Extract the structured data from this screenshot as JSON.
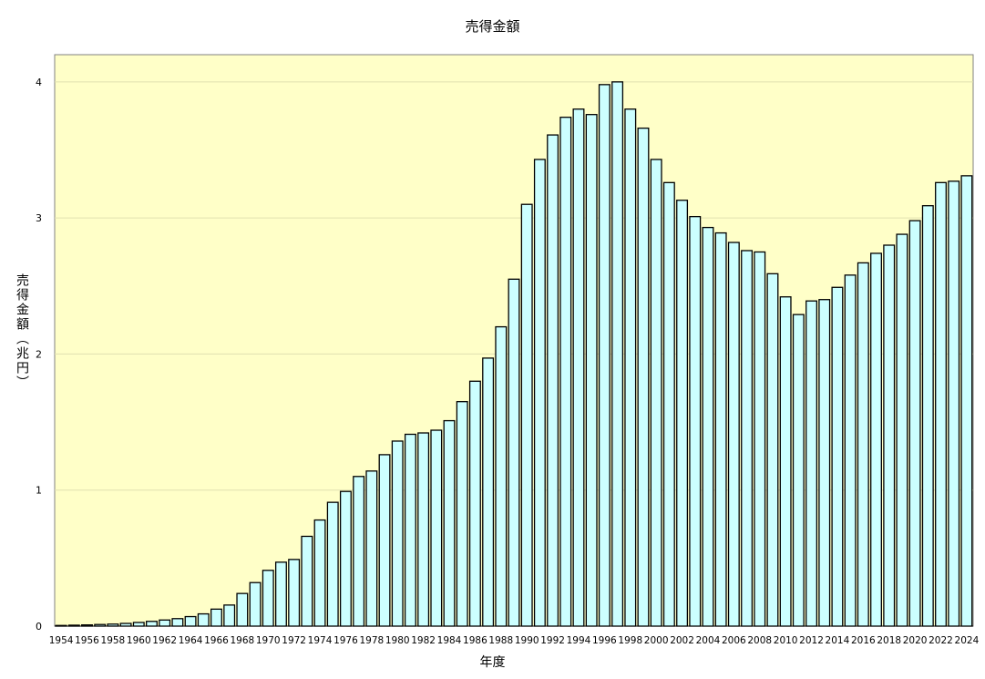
{
  "chart_data": {
    "type": "bar",
    "title": "売得金額",
    "xlabel": "年度",
    "ylabel": "売得金額（兆円）",
    "ylim": [
      0,
      4.2
    ],
    "yticks": [
      0,
      1,
      2,
      3,
      4
    ],
    "grid": true,
    "colors": {
      "plot_bg": "#ffffc8",
      "bar_fill": "#ccffff",
      "bar_stroke": "#000000",
      "grid": "#e0e0b0"
    },
    "categories": [
      1954,
      1955,
      1956,
      1957,
      1958,
      1959,
      1960,
      1961,
      1962,
      1963,
      1964,
      1965,
      1966,
      1967,
      1968,
      1969,
      1970,
      1971,
      1972,
      1973,
      1974,
      1975,
      1976,
      1977,
      1978,
      1979,
      1980,
      1981,
      1982,
      1983,
      1984,
      1985,
      1986,
      1987,
      1988,
      1989,
      1990,
      1991,
      1992,
      1993,
      1994,
      1995,
      1996,
      1997,
      1998,
      1999,
      2000,
      2001,
      2002,
      2003,
      2004,
      2005,
      2006,
      2007,
      2008,
      2009,
      2010,
      2011,
      2012,
      2013,
      2014,
      2015,
      2016,
      2017,
      2018,
      2019,
      2020,
      2021,
      2022,
      2023,
      2024
    ],
    "xtick_labels": [
      "1954",
      "1956",
      "1958",
      "1960",
      "1962",
      "1964",
      "1966",
      "1968",
      "1970",
      "1972",
      "1974",
      "1976",
      "1978",
      "1980",
      "1982",
      "1984",
      "1986",
      "1988",
      "1990",
      "1992",
      "1994",
      "1996",
      "1998",
      "2000",
      "2002",
      "2004",
      "2006",
      "2008",
      "2010",
      "2012",
      "2014",
      "2016",
      "2018",
      "2020",
      "2022",
      "2024"
    ],
    "values": [
      0.005,
      0.007,
      0.009,
      0.012,
      0.015,
      0.02,
      0.027,
      0.035,
      0.045,
      0.055,
      0.07,
      0.09,
      0.125,
      0.155,
      0.24,
      0.32,
      0.41,
      0.47,
      0.49,
      0.66,
      0.78,
      0.91,
      0.99,
      1.1,
      1.14,
      1.26,
      1.36,
      1.41,
      1.42,
      1.44,
      1.51,
      1.65,
      1.8,
      1.97,
      2.2,
      2.55,
      3.1,
      3.43,
      3.61,
      3.74,
      3.8,
      3.76,
      3.98,
      4.0,
      3.8,
      3.66,
      3.43,
      3.26,
      3.13,
      3.01,
      2.93,
      2.89,
      2.82,
      2.76,
      2.75,
      2.59,
      2.42,
      2.29,
      2.39,
      2.4,
      2.49,
      2.58,
      2.67,
      2.74,
      2.8,
      2.88,
      2.98,
      3.09,
      3.26,
      3.27,
      3.31
    ]
  }
}
